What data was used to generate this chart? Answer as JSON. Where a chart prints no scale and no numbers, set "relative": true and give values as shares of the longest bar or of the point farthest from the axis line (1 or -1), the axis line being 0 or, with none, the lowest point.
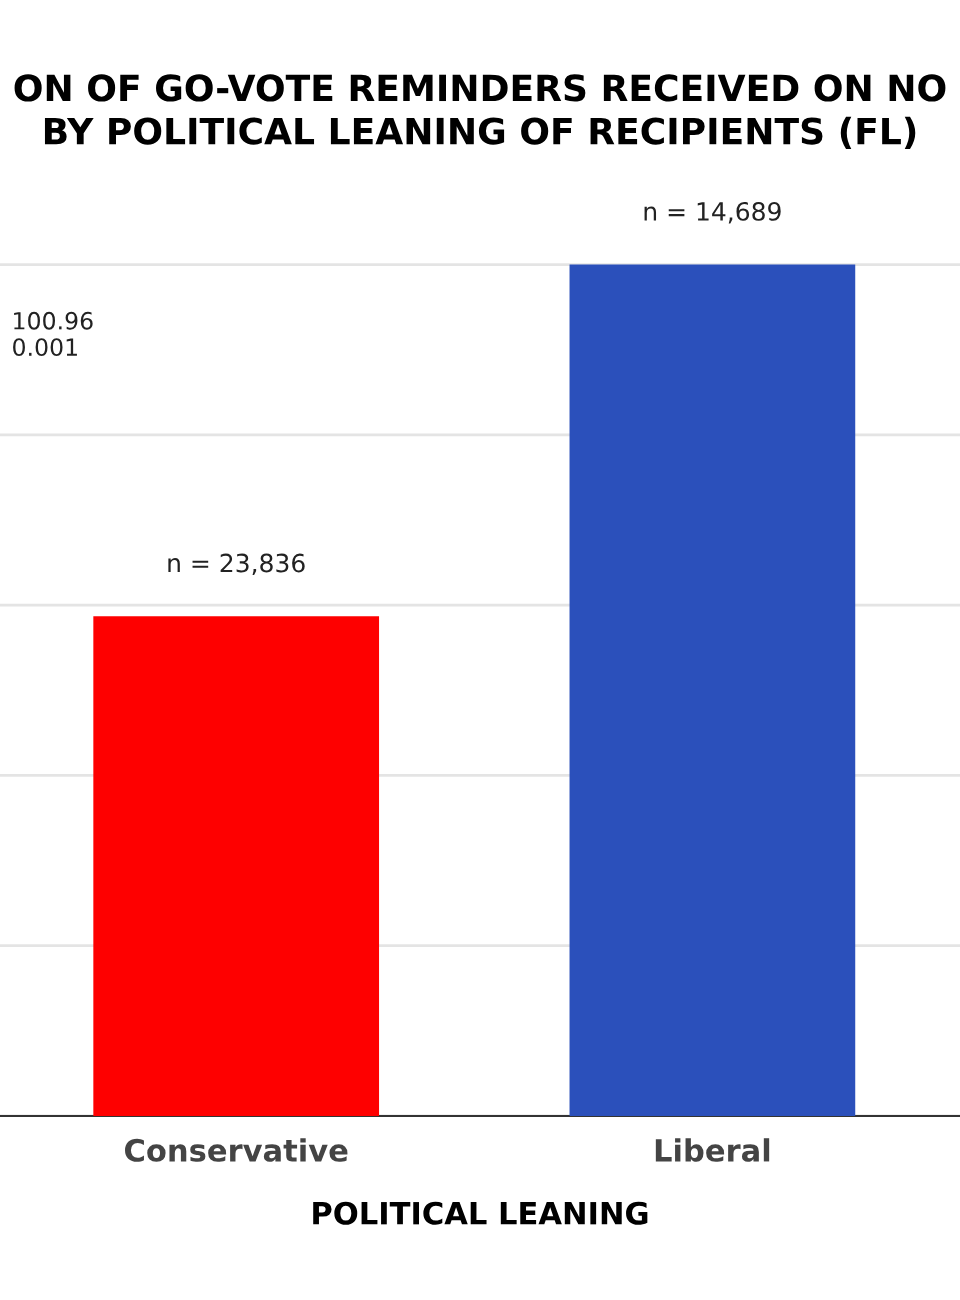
{
  "chart_data": {
    "type": "bar",
    "title": "ON OF GO-VOTE REMINDERS RECEIVED ON NO\nBY POLITICAL LEANING OF RECIPIENTS (FL)",
    "xlabel": "POLITICAL LEANING",
    "categories": [
      "Conservative",
      "Liberal"
    ],
    "values": [
      0.587,
      1
    ],
    "colors": [
      "#fe0000",
      "#2b50bb"
    ],
    "relative": true,
    "annotations": [
      "100.96\n0.001",
      {
        "text": "n = 23,836",
        "x": "Conservative",
        "y": 0.587
      },
      {
        "text": "n = 14,689",
        "x": "Liberal",
        "y": 1
      }
    ],
    "grid": "y"
  }
}
